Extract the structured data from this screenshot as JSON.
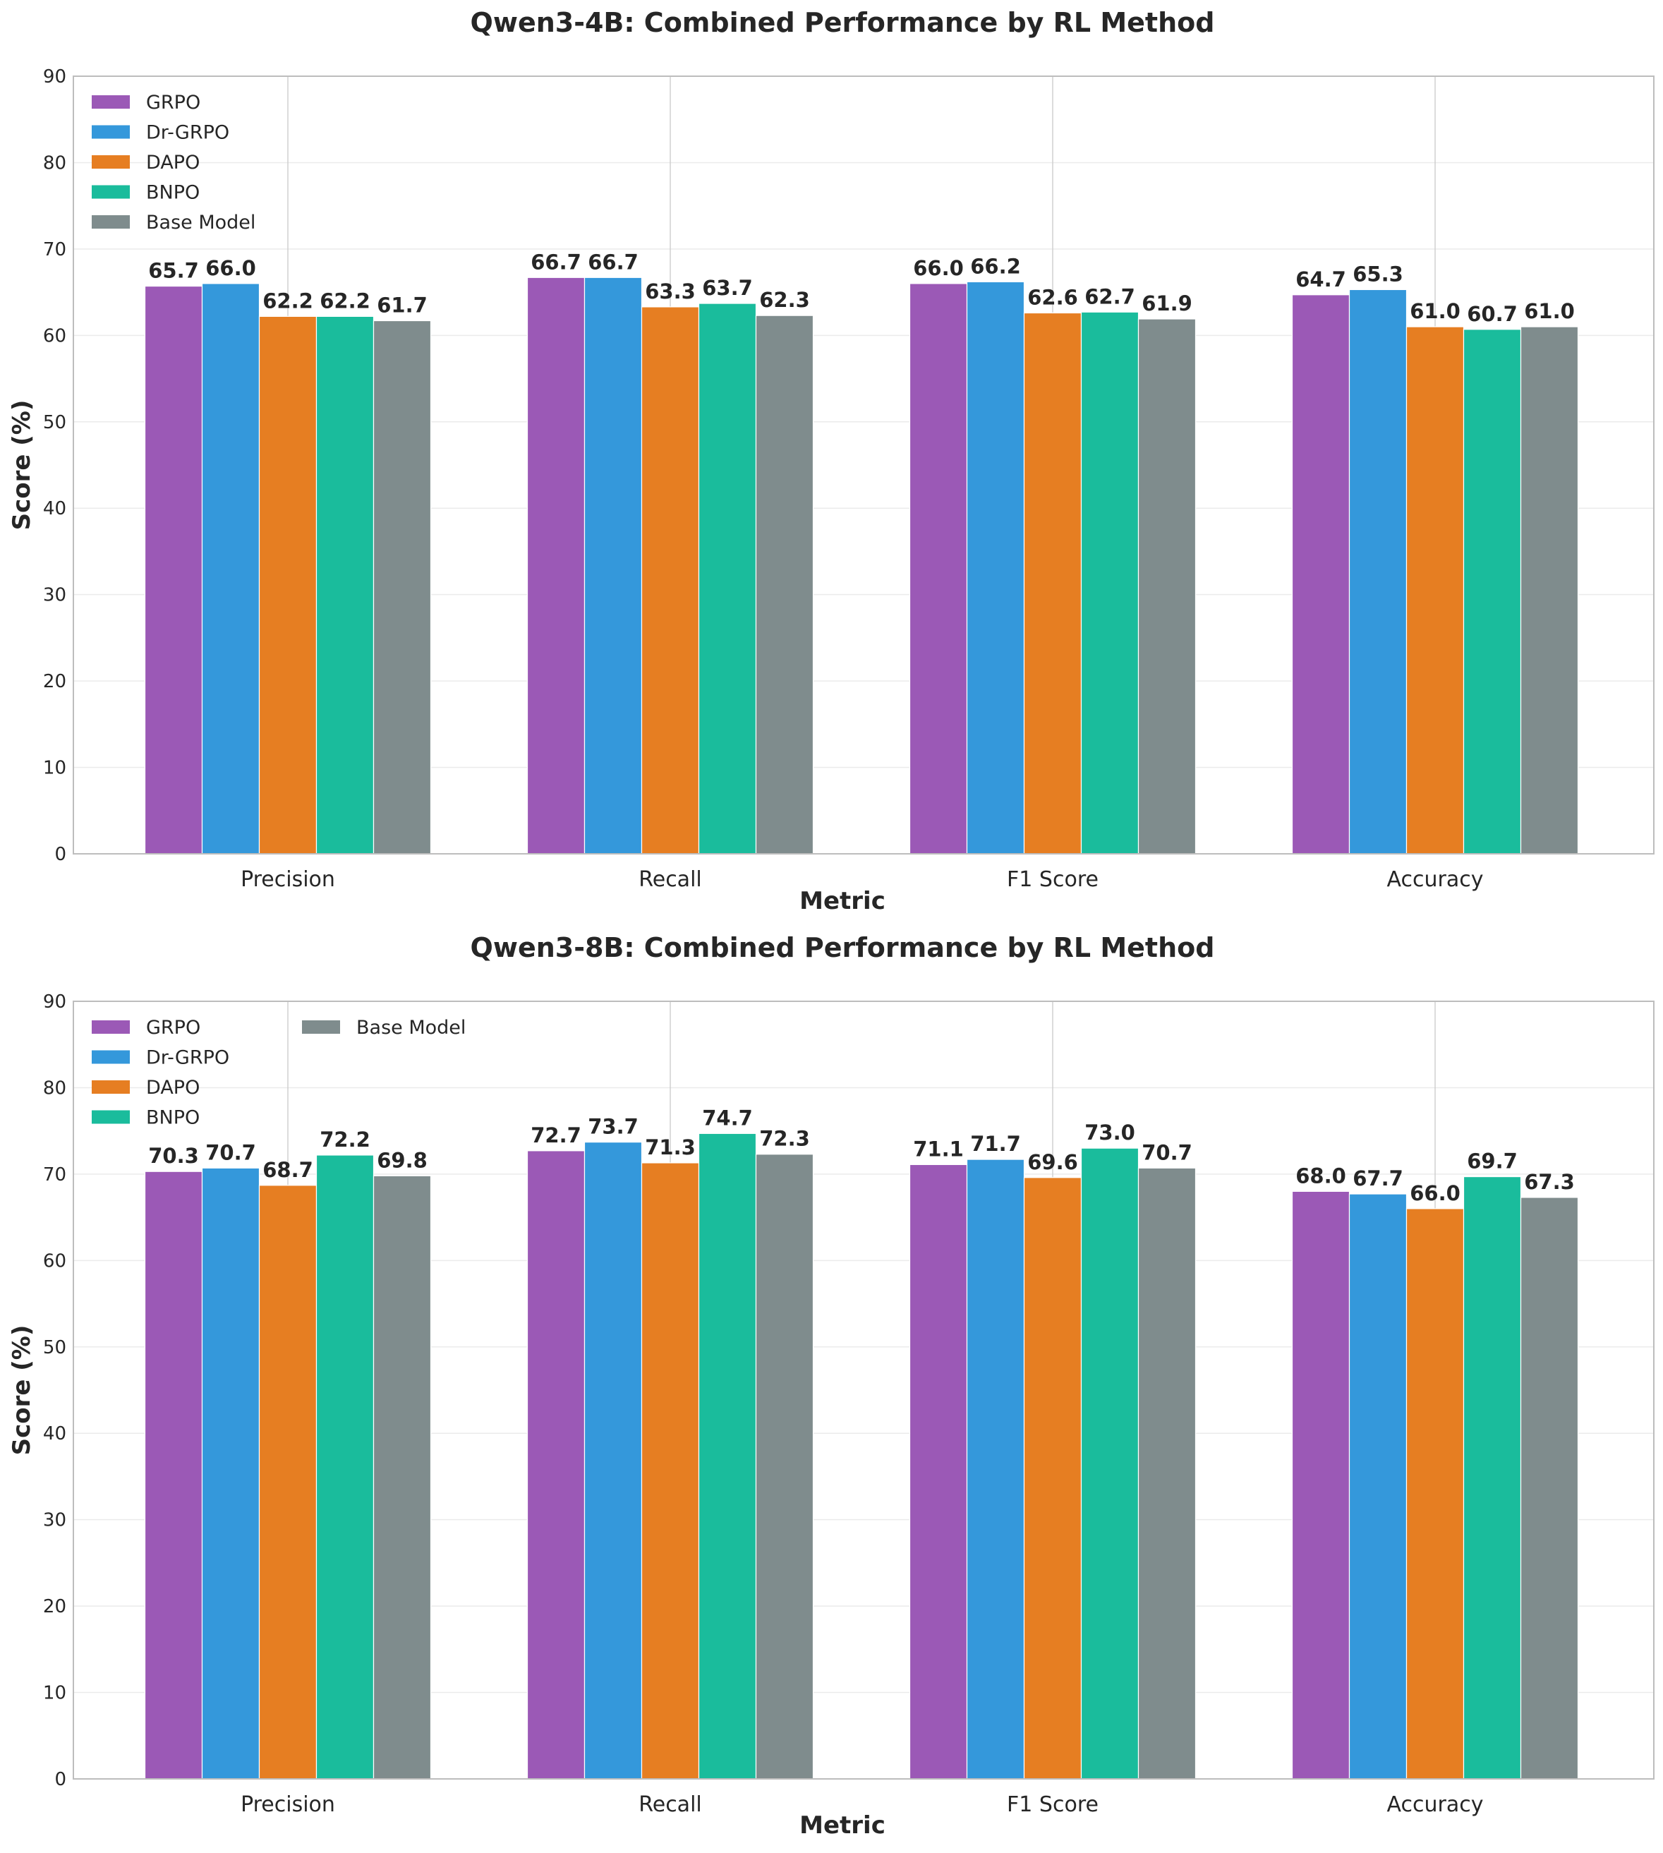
{
  "chart_data": [
    {
      "type": "bar",
      "title": "Qwen3-4B: Combined Performance by RL Method",
      "xlabel": "Metric",
      "ylabel": "Score (%)",
      "ylim": [
        0,
        90
      ],
      "yticks": [
        0,
        10,
        20,
        30,
        40,
        50,
        60,
        70,
        80,
        90
      ],
      "grid": true,
      "legend_position": "top-left",
      "categories": [
        "Precision",
        "Recall",
        "F1 Score",
        "Accuracy"
      ],
      "series": [
        {
          "name": "GRPO",
          "color": "#9b59b6",
          "values": [
            65.7,
            66.7,
            66.0,
            64.7
          ]
        },
        {
          "name": "Dr-GRPO",
          "color": "#3498db",
          "values": [
            66.0,
            66.7,
            66.2,
            65.3
          ]
        },
        {
          "name": "DAPO",
          "color": "#e67e22",
          "values": [
            62.2,
            63.3,
            62.6,
            61.0
          ]
        },
        {
          "name": "BNPO",
          "color": "#1abc9c",
          "values": [
            62.2,
            63.7,
            62.7,
            60.7
          ]
        },
        {
          "name": "Base Model",
          "color": "#7f8c8d",
          "values": [
            61.7,
            62.3,
            61.9,
            61.0
          ]
        }
      ]
    },
    {
      "type": "bar",
      "title": "Qwen3-8B: Combined Performance by RL Method",
      "xlabel": "Metric",
      "ylabel": "Score (%)",
      "ylim": [
        0,
        90
      ],
      "yticks": [
        0,
        10,
        20,
        30,
        40,
        50,
        60,
        70,
        80,
        90
      ],
      "grid": true,
      "legend_position": "top-left, two columns",
      "categories": [
        "Precision",
        "Recall",
        "F1 Score",
        "Accuracy"
      ],
      "series": [
        {
          "name": "GRPO",
          "color": "#9b59b6",
          "values": [
            70.3,
            72.7,
            71.1,
            68.0
          ]
        },
        {
          "name": "Dr-GRPO",
          "color": "#3498db",
          "values": [
            70.7,
            73.7,
            71.7,
            67.7
          ]
        },
        {
          "name": "DAPO",
          "color": "#e67e22",
          "values": [
            68.7,
            71.3,
            69.6,
            66.0
          ]
        },
        {
          "name": "BNPO",
          "color": "#1abc9c",
          "values": [
            72.2,
            74.7,
            73.0,
            69.7
          ]
        },
        {
          "name": "Base Model",
          "color": "#7f8c8d",
          "values": [
            69.8,
            72.3,
            70.7,
            67.3
          ]
        }
      ]
    }
  ]
}
